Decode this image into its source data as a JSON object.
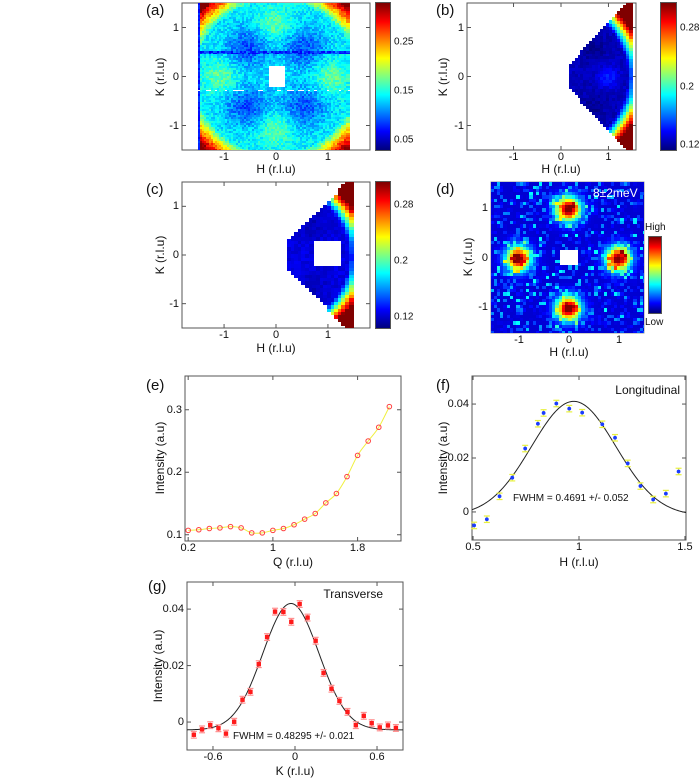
{
  "panels": {
    "a": {
      "label": "(a)",
      "xlabel": "H (r.l.u)",
      "ylabel": "K (r.l.u)"
    },
    "b": {
      "label": "(b)",
      "xlabel": "H (r.l.u)",
      "ylabel": "K (r.l.u)"
    },
    "c": {
      "label": "(c)",
      "xlabel": "H (r.l.u)",
      "ylabel": "K (r.l.u)"
    },
    "d": {
      "label": "(d)",
      "xlabel": "H (r.l.u)",
      "ylabel": "K (r.l.u)",
      "annotation": "8±2meV",
      "colorbar_high": "High",
      "colorbar_low": "Low"
    },
    "e": {
      "label": "(e)",
      "xlabel": "Q (r.l.u)",
      "ylabel": "Intensity (a.u)"
    },
    "f": {
      "label": "(f)",
      "xlabel": "H (r.l.u)",
      "ylabel": "Intensity (a.u)",
      "title": "Longitudinal",
      "annotation": "FWHM = 0.4691 +/- 0.052"
    },
    "g": {
      "label": "(g)",
      "xlabel": "K (r.l.u)",
      "ylabel": "Intensity (a.u)",
      "title": "Transverse",
      "annotation": "FWHM = 0.48295 +/- 0.021"
    }
  },
  "chart_data": [
    {
      "panel": "a",
      "type": "heatmap",
      "colormap": "jet",
      "xlabel": "H (r.l.u)",
      "ylabel": "K (r.l.u)",
      "xlim": [
        -1.81,
        1.81
      ],
      "ylim": [
        -1.5,
        1.5
      ],
      "xticks": [
        -1,
        0,
        1
      ],
      "yticks": [
        -1,
        0,
        1
      ],
      "colorbar": {
        "range": [
          0.03,
          0.33
        ],
        "ticks": [
          0.05,
          0.15,
          0.25
        ]
      }
    },
    {
      "panel": "b",
      "type": "heatmap",
      "colormap": "jet",
      "xlabel": "H (r.l.u)",
      "ylabel": "K (r.l.u)",
      "xlim": [
        -1.98,
        1.58
      ],
      "ylim": [
        -1.5,
        1.5
      ],
      "xticks": [
        -1,
        0,
        1
      ],
      "yticks": [
        -1,
        0,
        1
      ],
      "colorbar": {
        "range": [
          0.113,
          0.315
        ],
        "ticks": [
          0.12,
          0.2,
          0.28
        ]
      }
    },
    {
      "panel": "c",
      "type": "heatmap",
      "colormap": "jet",
      "xlabel": "H (r.l.u)",
      "ylabel": "K (r.l.u)",
      "xlim": [
        -1.81,
        1.81
      ],
      "ylim": [
        -1.5,
        1.5
      ],
      "xticks": [
        -1,
        0,
        1
      ],
      "yticks": [
        -1,
        0,
        1
      ],
      "colorbar": {
        "range": [
          0.105,
          0.312
        ],
        "ticks": [
          0.12,
          0.2,
          0.28
        ]
      }
    },
    {
      "panel": "d",
      "type": "heatmap",
      "colormap": "jet",
      "xlabel": "H (r.l.u)",
      "ylabel": "K (r.l.u)",
      "xlim": [
        -1.56,
        1.5
      ],
      "ylim": [
        -1.52,
        1.52
      ],
      "xticks": [
        -1,
        0,
        1
      ],
      "yticks": [
        -1,
        0,
        1
      ],
      "colorbar": {
        "labels": [
          "Low",
          "High"
        ]
      }
    },
    {
      "panel": "e",
      "type": "line",
      "xlabel": "Q (r.l.u)",
      "ylabel": "Intensity (a.u)",
      "xlim": [
        0.17,
        2.21
      ],
      "ylim": [
        0.09,
        0.354
      ],
      "xticks": [
        0.2,
        1,
        1.8
      ],
      "yticks": [
        0.1,
        0.2,
        0.3
      ],
      "marker_color": "#ff4040",
      "line_color": "#f0f040",
      "x": [
        0.2,
        0.3,
        0.4,
        0.5,
        0.6,
        0.7,
        0.8,
        0.9,
        1.0,
        1.1,
        1.2,
        1.3,
        1.4,
        1.5,
        1.6,
        1.7,
        1.8,
        1.9,
        2.0,
        2.1
      ],
      "y": [
        0.107,
        0.108,
        0.11,
        0.111,
        0.113,
        0.111,
        0.103,
        0.103,
        0.107,
        0.11,
        0.116,
        0.125,
        0.134,
        0.151,
        0.166,
        0.193,
        0.227,
        0.25,
        0.272,
        0.305
      ]
    },
    {
      "panel": "f",
      "type": "scatter",
      "title": "Longitudinal",
      "xlabel": "H (r.l.u)",
      "ylabel": "Intensity (a.u)",
      "xlim": [
        0.495,
        1.505
      ],
      "ylim": [
        -0.0104,
        0.0504
      ],
      "xticks": [
        0.5,
        1,
        1.5
      ],
      "yticks": [
        0,
        0.02,
        0.04
      ],
      "marker_color": "#1a3cff",
      "errorbar_color": "#e8f040",
      "x": [
        0.505,
        0.565,
        0.625,
        0.685,
        0.746,
        0.806,
        0.833,
        0.893,
        0.954,
        1.015,
        1.11,
        1.17,
        1.23,
        1.29,
        1.35,
        1.41,
        1.47
      ],
      "y": [
        -0.005,
        -0.0027,
        0.0058,
        0.0127,
        0.0235,
        0.0327,
        0.0367,
        0.0402,
        0.0383,
        0.0368,
        0.0325,
        0.0275,
        0.018,
        0.0096,
        0.0046,
        0.0068,
        0.015
      ],
      "yerr": 0.0012,
      "fit": {
        "type": "gaussian",
        "center": 0.975,
        "amplitude": 0.0425,
        "baseline": -0.0015,
        "fwhm": 0.4691
      },
      "annotation": "FWHM = 0.4691 +/- 0.052"
    },
    {
      "panel": "g",
      "type": "scatter",
      "title": "Transverse",
      "xlabel": "K (r.l.u)",
      "ylabel": "Intensity (a.u)",
      "xlim": [
        -0.79,
        0.79
      ],
      "ylim": [
        -0.0099,
        0.0496
      ],
      "xticks": [
        -0.6,
        0,
        0.6
      ],
      "yticks": [
        0,
        0.02,
        0.04
      ],
      "marker_color": "#ff1a1a",
      "errorbar_color": "#ff9090",
      "x": [
        -0.74,
        -0.68,
        -0.62,
        -0.56,
        -0.505,
        -0.445,
        -0.384,
        -0.326,
        -0.265,
        -0.204,
        -0.146,
        -0.085,
        -0.027,
        0.034,
        0.092,
        0.151,
        0.209,
        0.267,
        0.325,
        0.384,
        0.445,
        0.503,
        0.561,
        0.62,
        0.68,
        0.738
      ],
      "y": [
        -0.0045,
        -0.0026,
        -0.0011,
        -0.0022,
        -0.0041,
        0.0001,
        0.0079,
        0.0107,
        0.0205,
        0.0301,
        0.0391,
        0.039,
        0.0355,
        0.0418,
        0.037,
        0.0288,
        0.0174,
        0.0118,
        0.0075,
        0.0036,
        -0.0011,
        0.0022,
        -0.0004,
        -0.0019,
        -0.0012,
        -0.0021
      ],
      "yerr": 0.0012,
      "fit": {
        "type": "gaussian",
        "center": -0.03,
        "amplitude": 0.0448,
        "baseline": -0.0028,
        "fwhm": 0.48295
      },
      "annotation": "FWHM = 0.48295 +/- 0.021"
    }
  ]
}
